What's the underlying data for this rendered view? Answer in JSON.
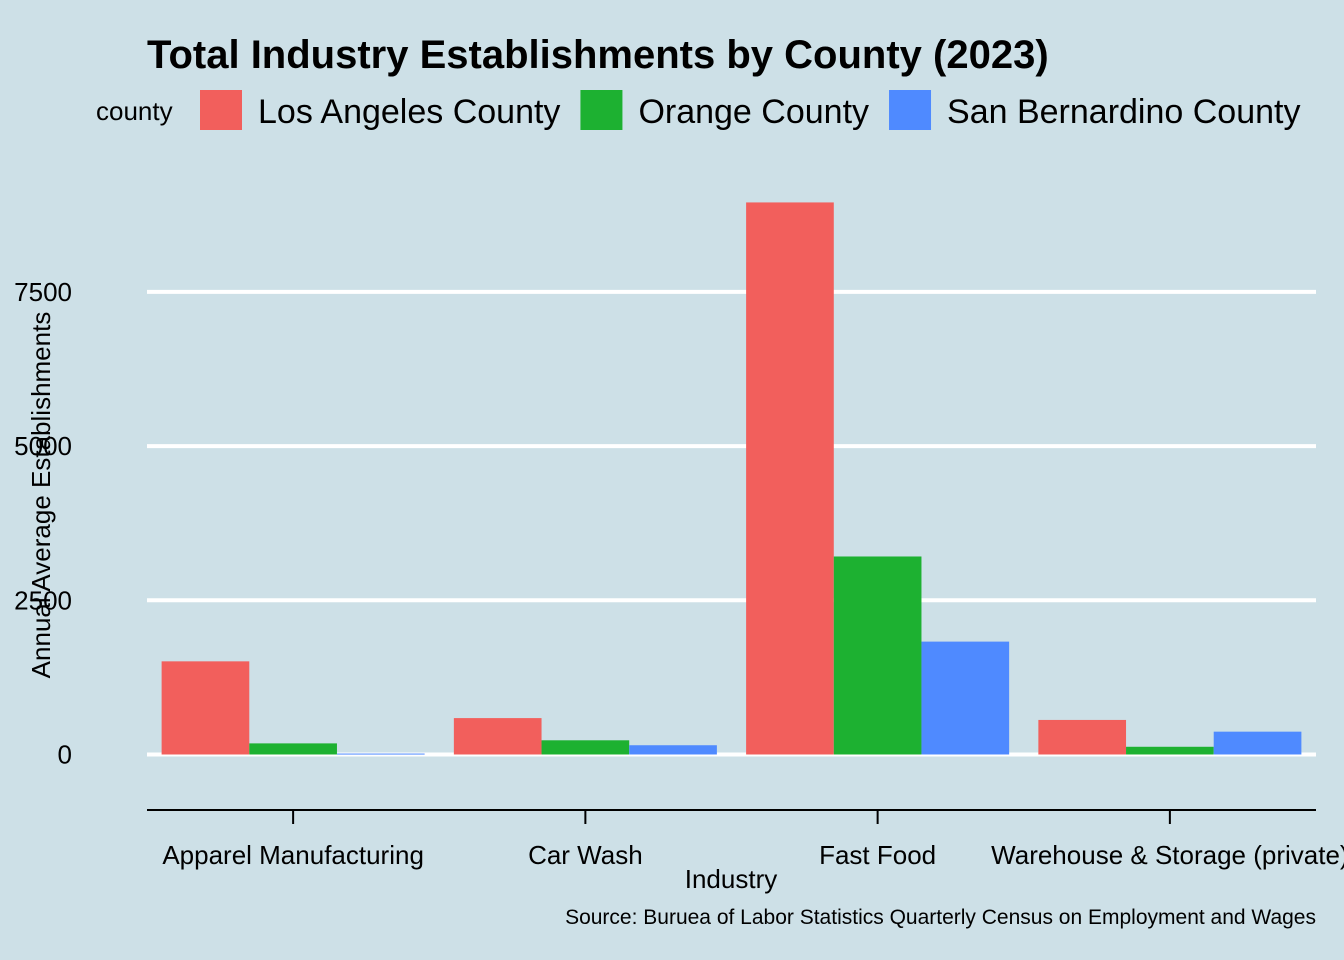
{
  "chart_data": {
    "type": "bar",
    "title": "Total Industry Establishments by County (2023)",
    "legend_title": "county",
    "legend_position": "top",
    "xlabel": "Industry",
    "ylabel": "Annual Average Establishments",
    "caption": "Source: Buruea of Labor Statistics Quarterly Census on Employment and Wages",
    "categories": [
      "Apparel Manufacturing",
      "Car Wash",
      "Fast Food",
      "Warehouse & Storage (private)"
    ],
    "ylim": [
      -900,
      9800
    ],
    "yticks": [
      0,
      2500,
      5000,
      7500
    ],
    "grid": "horizontal major lines",
    "series": [
      {
        "name": "Los Angeles County",
        "color": "#f25f5c",
        "values": [
          1510,
          590,
          8950,
          560
        ]
      },
      {
        "name": "Orange County",
        "color": "#1db131",
        "values": [
          180,
          230,
          3210,
          125
        ]
      },
      {
        "name": "San Bernardino County",
        "color": "#4f8aff",
        "values": [
          15,
          150,
          1830,
          370
        ]
      }
    ]
  }
}
